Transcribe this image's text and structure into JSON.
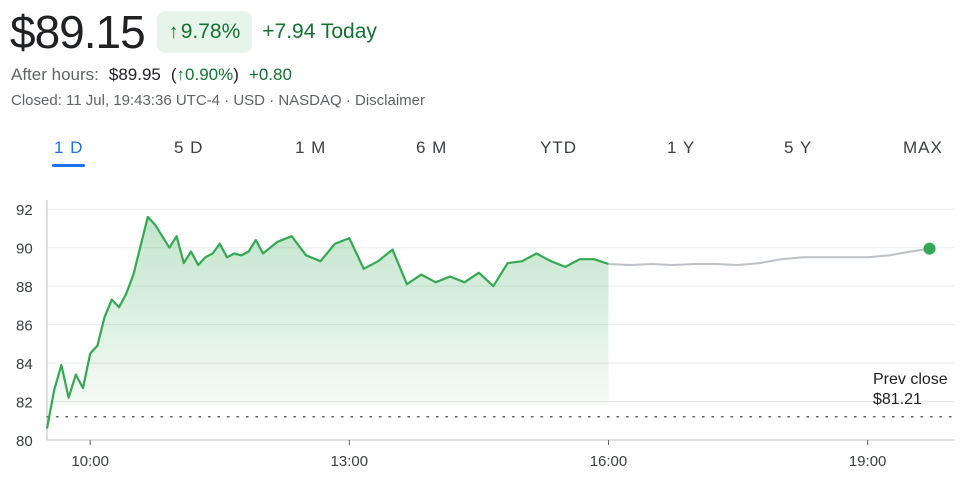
{
  "quote": {
    "price": "$89.15",
    "change_pct": "9.78%",
    "change_abs": "+7.94 Today",
    "arrow_icon": "up-arrow-icon",
    "color_up": "#137333",
    "chip_bg": "#e6f4ea"
  },
  "after_hours": {
    "label": "After hours:",
    "price": "$89.95",
    "open_paren": "(",
    "change_pct": "0.90%",
    "close_paren": ")",
    "change_abs": "+0.80"
  },
  "meta": "Closed: 11 Jul, 19:43:36 UTC-4 · USD · NASDAQ · Disclaimer",
  "tabs": [
    {
      "label": "1 D",
      "active": true
    },
    {
      "label": "5 D"
    },
    {
      "label": "1 M"
    },
    {
      "label": "6 M"
    },
    {
      "label": "YTD"
    },
    {
      "label": "1 Y"
    },
    {
      "label": "5 Y"
    },
    {
      "label": "MAX"
    }
  ],
  "chart_data": {
    "type": "line",
    "xlim": [
      "09:30",
      "20:00"
    ],
    "ylim": [
      80,
      93
    ],
    "ytick_labels": [
      "92",
      "90",
      "88",
      "86",
      "84",
      "82",
      "80"
    ],
    "ytick_values": [
      92,
      90,
      88,
      86,
      84,
      82,
      80
    ],
    "xtick_labels": [
      "10:00",
      "13:00",
      "16:00",
      "19:00"
    ],
    "grid": true,
    "prev_close_label": "Prev close",
    "prev_close_value_label": "$81.21",
    "prev_close": 81.21,
    "line_color_regular": "#34a853",
    "line_color_extended": "#bdc1c6",
    "series": [
      {
        "session": "regular",
        "x": [
          "09:30",
          "09:35",
          "09:40",
          "09:45",
          "09:50",
          "09:55",
          "10:00",
          "10:05",
          "10:10",
          "10:15",
          "10:20",
          "10:25",
          "10:30",
          "10:35",
          "10:40",
          "10:45",
          "10:50",
          "10:55",
          "11:00",
          "11:05",
          "11:10",
          "11:15",
          "11:20",
          "11:25",
          "11:30",
          "11:35",
          "11:40",
          "11:45",
          "11:50",
          "11:55",
          "12:00",
          "12:10",
          "12:20",
          "12:30",
          "12:40",
          "12:50",
          "13:00",
          "13:10",
          "13:20",
          "13:30",
          "13:40",
          "13:50",
          "14:00",
          "14:10",
          "14:20",
          "14:30",
          "14:40",
          "14:50",
          "15:00",
          "15:10",
          "15:20",
          "15:30",
          "15:40",
          "15:50",
          "16:00"
        ],
        "y": [
          80.6,
          82.6,
          83.9,
          82.2,
          83.4,
          82.7,
          84.5,
          84.9,
          86.4,
          87.3,
          86.9,
          87.6,
          88.6,
          90.1,
          91.6,
          91.2,
          90.6,
          90.0,
          90.6,
          89.2,
          89.8,
          89.1,
          89.5,
          89.7,
          90.2,
          89.5,
          89.7,
          89.6,
          89.8,
          90.4,
          89.7,
          90.3,
          90.6,
          89.6,
          89.3,
          90.2,
          90.5,
          88.9,
          89.3,
          89.9,
          88.1,
          88.6,
          88.2,
          88.5,
          88.2,
          88.7,
          88.0,
          89.2,
          89.3,
          89.7,
          89.3,
          89.0,
          89.4,
          89.4,
          89.15
        ]
      },
      {
        "session": "after_hours",
        "x": [
          "16:00",
          "16:15",
          "16:30",
          "16:45",
          "17:00",
          "17:15",
          "17:30",
          "17:45",
          "18:00",
          "18:15",
          "18:30",
          "18:45",
          "19:00",
          "19:15",
          "19:30",
          "19:43"
        ],
        "y": [
          89.15,
          89.1,
          89.15,
          89.1,
          89.15,
          89.15,
          89.1,
          89.2,
          89.4,
          89.5,
          89.5,
          89.5,
          89.5,
          89.6,
          89.8,
          89.95
        ]
      }
    ]
  }
}
